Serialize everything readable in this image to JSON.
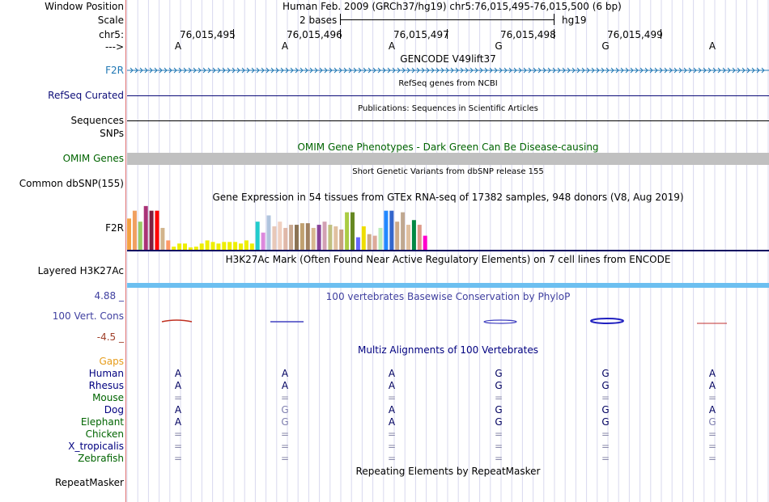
{
  "colors": {
    "f2r_blue": "#1f77b4",
    "refseq": "#0c0c78",
    "omim": "#006400",
    "phylop_blue": "#4040a0",
    "phylop_red": "#a0402a",
    "gaps": "#e69c1a",
    "mammal": "#000080",
    "vertebrate": "#006400",
    "h3k27ac": "#6cbff0"
  },
  "header": {
    "window_position_label": "Window Position",
    "window_position_value": "Human Feb. 2009 (GRCh37/hg19)   chr5:76,015,495-76,015,500 (6 bp)",
    "scale_label": "Scale",
    "scale_text": "2 bases",
    "scale_assembly": "hg19",
    "chr_label": "chr5:",
    "positions": [
      "76,015,495",
      "76,015,496",
      "76,015,497",
      "76,015,498",
      "76,015,499"
    ],
    "strand_label": "--->",
    "bases": [
      "A",
      "A",
      "A",
      "G",
      "G",
      "A"
    ]
  },
  "tracks": {
    "gencode_title": "GENCODE V49lift37",
    "f2r_label": "F2R",
    "refseq_title": "RefSeq genes from NCBI",
    "refseq_label": "RefSeq Curated",
    "publications_title": "Publications: Sequences in Scientific Articles",
    "sequences_label": "Sequences",
    "snps_label": "SNPs",
    "omim_title": "OMIM Gene Phenotypes - Dark Green Can Be Disease-causing",
    "omim_label": "OMIM Genes",
    "dbsnp_title": "Short Genetic Variants from dbSNP release 155",
    "dbsnp_label": "Common dbSNP(155)",
    "gtex_title": "Gene Expression in 54 tissues from GTEx RNA-seq of 17382 samples, 948 donors (V8, Aug 2019)",
    "gtex_label": "F2R",
    "h3k27ac_title": "H3K27Ac Mark (Often Found Near Active Regulatory Elements) on 7 cell lines from ENCODE",
    "h3k27ac_label": "Layered H3K27Ac",
    "phylop_title": "100 vertebrates Basewise Conservation by PhyloP",
    "phylop_label": "100 Vert. Cons",
    "phylop_max": "4.88 _",
    "phylop_min": "-4.5 _",
    "multiz_title": "Multiz Alignments of 100 Vertebrates",
    "gaps_label": "Gaps",
    "repeat_title": "Repeating Elements by RepeatMasker",
    "repeat_label": "RepeatMasker"
  },
  "gtex_bars": [
    {
      "value": 40,
      "color": "#f5a142"
    },
    {
      "value": 50,
      "color": "#f0a060"
    },
    {
      "value": 36,
      "color": "#99cc66"
    },
    {
      "value": 56,
      "color": "#aa3377"
    },
    {
      "value": 50,
      "color": "#7f1f3f"
    },
    {
      "value": 50,
      "color": "#ff0000"
    },
    {
      "value": 28,
      "color": "#d2b48c"
    },
    {
      "value": 12,
      "color": "#ff9966"
    },
    {
      "value": 4,
      "color": "#eeee00"
    },
    {
      "value": 8,
      "color": "#eeee00"
    },
    {
      "value": 8,
      "color": "#eeee00"
    },
    {
      "value": 3,
      "color": "#eeee00"
    },
    {
      "value": 4,
      "color": "#eeee00"
    },
    {
      "value": 8,
      "color": "#eeee00"
    },
    {
      "value": 12,
      "color": "#eeee00"
    },
    {
      "value": 10,
      "color": "#eeee00"
    },
    {
      "value": 8,
      "color": "#eeee00"
    },
    {
      "value": 10,
      "color": "#eeee00"
    },
    {
      "value": 10,
      "color": "#eeee00"
    },
    {
      "value": 10,
      "color": "#eeee00"
    },
    {
      "value": 8,
      "color": "#eeee00"
    },
    {
      "value": 12,
      "color": "#eeee00"
    },
    {
      "value": 8,
      "color": "#eeee00"
    },
    {
      "value": 36,
      "color": "#22cccc"
    },
    {
      "value": 22,
      "color": "#dd88dd"
    },
    {
      "value": 44,
      "color": "#b0c4de"
    },
    {
      "value": 30,
      "color": "#e8c8b8"
    },
    {
      "value": 36,
      "color": "#f0d0c0"
    },
    {
      "value": 28,
      "color": "#e0b8a8"
    },
    {
      "value": 32,
      "color": "#c8a890"
    },
    {
      "value": 32,
      "color": "#8b7355"
    },
    {
      "value": 34,
      "color": "#c0a070"
    },
    {
      "value": 34,
      "color": "#a08060"
    },
    {
      "value": 28,
      "color": "#d8b890"
    },
    {
      "value": 32,
      "color": "#884499"
    },
    {
      "value": 36,
      "color": "#d2a0b4"
    },
    {
      "value": 32,
      "color": "#c0c080"
    },
    {
      "value": 30,
      "color": "#e0c0a0"
    },
    {
      "value": 26,
      "color": "#c8a080"
    },
    {
      "value": 48,
      "color": "#aacc44"
    },
    {
      "value": 48,
      "color": "#668822"
    },
    {
      "value": 16,
      "color": "#6666ff"
    },
    {
      "value": 30,
      "color": "#eedd00"
    },
    {
      "value": 20,
      "color": "#ccaa88"
    },
    {
      "value": 18,
      "color": "#ddaa99"
    },
    {
      "value": 28,
      "color": "#bbeebb"
    },
    {
      "value": 50,
      "color": "#2288ff"
    },
    {
      "value": 50,
      "color": "#3366cc"
    },
    {
      "value": 36,
      "color": "#ccaa88"
    },
    {
      "value": 48,
      "color": "#c0a890"
    },
    {
      "value": 32,
      "color": "#e0c0a0"
    },
    {
      "value": 38,
      "color": "#008844"
    },
    {
      "value": 32,
      "color": "#dd9988"
    },
    {
      "value": 18,
      "color": "#ff00cc"
    }
  ],
  "alignment": {
    "species": [
      {
        "name": "Human",
        "group": "mammal",
        "bases": [
          "A",
          "A",
          "A",
          "G",
          "G",
          "A"
        ]
      },
      {
        "name": "Rhesus",
        "group": "mammal",
        "bases": [
          "A",
          "A",
          "A",
          "G",
          "G",
          "A"
        ]
      },
      {
        "name": "Mouse",
        "group": "vertebrate",
        "bases": [
          "=",
          "=",
          "=",
          "=",
          "=",
          "="
        ]
      },
      {
        "name": "Dog",
        "group": "mammal",
        "bases": [
          "A",
          "G",
          "A",
          "G",
          "G",
          "A"
        ]
      },
      {
        "name": "Elephant",
        "group": "vertebrate",
        "bases": [
          "A",
          "G",
          "A",
          "G",
          "G",
          "G"
        ]
      },
      {
        "name": "Chicken",
        "group": "vertebrate",
        "bases": [
          "=",
          "=",
          "=",
          "=",
          "=",
          "="
        ]
      },
      {
        "name": "X_tropicalis",
        "group": "mammal",
        "bases": [
          "=",
          "=",
          "=",
          "=",
          "=",
          "="
        ]
      },
      {
        "name": "Zebrafish",
        "group": "vertebrate",
        "bases": [
          "=",
          "=",
          "=",
          "=",
          "=",
          "="
        ]
      }
    ]
  }
}
